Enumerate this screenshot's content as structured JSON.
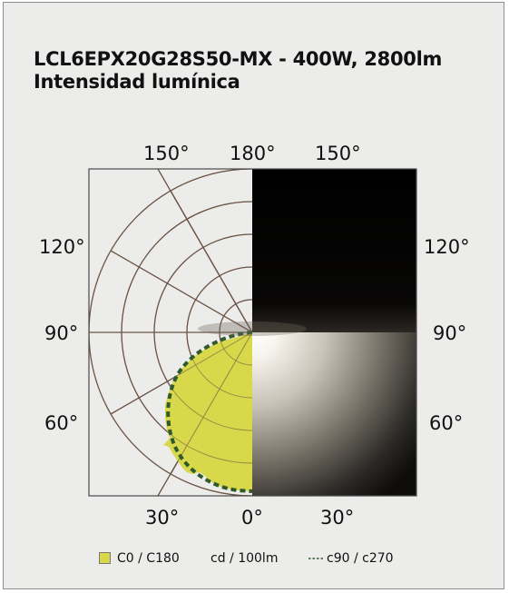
{
  "title_line1": "LCL6EPX20G28S50-MX - 400W, 2800lm",
  "title_line2": "Intensidad lumínica",
  "angle_labels": {
    "top_left_150": "150°",
    "top_180": "180°",
    "top_right_150": "150°",
    "left_120": "120°",
    "right_120": "120°",
    "left_90": "90°",
    "right_90": "90°",
    "left_60": "60°",
    "right_60": "60°",
    "bottom_left_30": "30°",
    "bottom_0": "0°",
    "bottom_right_30": "30°"
  },
  "legend": {
    "c0_label": "C0 / C180",
    "unit_label": "cd / 100lm",
    "c90_label": "c90 / c270"
  },
  "colors": {
    "background": "#ececea",
    "grid": "#6b5446",
    "c0_fill": "#d8d84a",
    "c90_line": "#2f5a2f"
  }
}
